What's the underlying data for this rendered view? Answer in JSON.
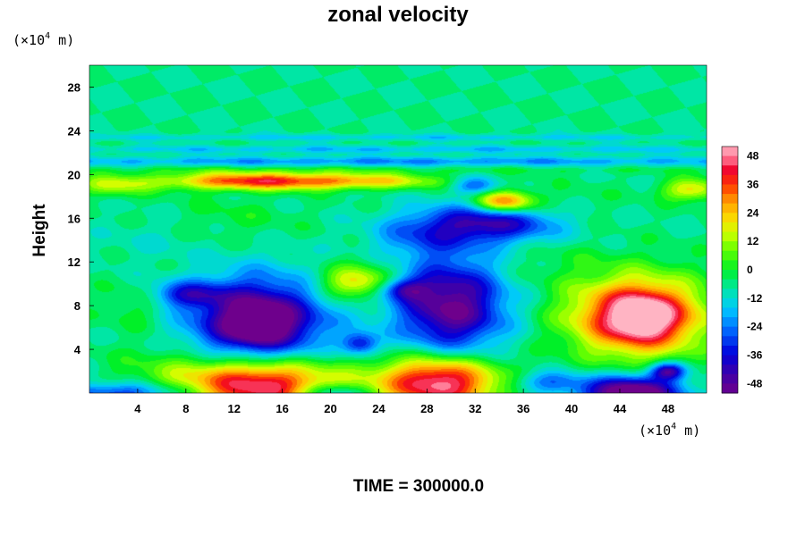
{
  "chart_data": {
    "type": "heatmap",
    "title": "zonal velocity",
    "ylabel": "Height",
    "xlabel": "",
    "y_unit_base": "(×10",
    "y_unit_exp": "4",
    "y_unit_tail": " m)",
    "x_unit_base": "(×10",
    "x_unit_exp": "4",
    "x_unit_tail": " m)",
    "footer": "TIME = 300000.0",
    "xlim": [
      0,
      51.2
    ],
    "ylim": [
      0,
      30
    ],
    "x_ticks": [
      4,
      8,
      12,
      16,
      20,
      24,
      28,
      32,
      36,
      40,
      44,
      48
    ],
    "y_ticks": [
      4,
      8,
      12,
      16,
      20,
      24,
      28
    ],
    "colorbar": {
      "range": [
        -52,
        52
      ],
      "ticks": [
        48,
        36,
        24,
        12,
        0,
        -12,
        -24,
        -36,
        -48
      ]
    },
    "background_value": -6,
    "features": [
      {
        "x": 6,
        "y": 2,
        "rx": 5,
        "ry": 3,
        "v": 6
      },
      {
        "x": 24,
        "y": 11,
        "rx": 4,
        "ry": 2,
        "v": 6
      },
      {
        "x": 38,
        "y": 12,
        "rx": 6,
        "ry": 2.5,
        "v": 4
      },
      {
        "x": 12,
        "y": 16,
        "rx": 5,
        "ry": 2,
        "v": 5
      },
      {
        "x": 40,
        "y": 17,
        "rx": 4,
        "ry": 2,
        "v": 4
      },
      {
        "x": 27,
        "y": 14,
        "rx": 4,
        "ry": 2,
        "v": -12
      },
      {
        "x": 5,
        "y": 14,
        "rx": 4,
        "ry": 2,
        "v": -4
      },
      {
        "x": 14,
        "y": 19.4,
        "rx": 8,
        "ry": 0.8,
        "v": 44
      },
      {
        "x": 24,
        "y": 19.4,
        "rx": 6,
        "ry": 0.7,
        "v": 20
      },
      {
        "x": 2,
        "y": 19,
        "rx": 3,
        "ry": 1,
        "v": 18
      },
      {
        "x": 50,
        "y": 18.6,
        "rx": 2.5,
        "ry": 1,
        "v": 26
      },
      {
        "x": 26,
        "y": 21.2,
        "rx": 40,
        "ry": 0.45,
        "v": -16
      },
      {
        "x": 26,
        "y": 22.3,
        "rx": 40,
        "ry": 0.35,
        "v": -11
      },
      {
        "x": 26,
        "y": 23.4,
        "rx": 40,
        "ry": 0.3,
        "v": -9
      },
      {
        "x": 26,
        "y": 20.4,
        "rx": 40,
        "ry": 0.35,
        "v": 4
      },
      {
        "x": 14,
        "y": 6.5,
        "rx": 5.5,
        "ry": 4,
        "v": -52
      },
      {
        "x": 14,
        "y": 6.5,
        "rx": 2.2,
        "ry": 1.5,
        "v": -25
      },
      {
        "x": 30,
        "y": 8,
        "rx": 4.5,
        "ry": 4.5,
        "v": -46
      },
      {
        "x": 33,
        "y": 15.5,
        "rx": 6,
        "ry": 1.8,
        "v": -36
      },
      {
        "x": 34.5,
        "y": 17.5,
        "rx": 2.5,
        "ry": 1,
        "v": 42
      },
      {
        "x": 32,
        "y": 19,
        "rx": 2,
        "ry": 0.8,
        "v": -20
      },
      {
        "x": 22,
        "y": 10,
        "rx": 3,
        "ry": 1.5,
        "v": 26
      },
      {
        "x": 22.5,
        "y": 4.5,
        "rx": 1.5,
        "ry": 1,
        "v": -28
      },
      {
        "x": 14,
        "y": 0.8,
        "rx": 6.5,
        "ry": 2.6,
        "v": 58
      },
      {
        "x": 29,
        "y": 1,
        "rx": 5,
        "ry": 2.4,
        "v": 58
      },
      {
        "x": 45.5,
        "y": 7,
        "rx": 5.5,
        "ry": 3.5,
        "v": 58
      },
      {
        "x": 46,
        "y": 7,
        "rx": 2.5,
        "ry": 2,
        "v": 20
      },
      {
        "x": 45,
        "y": 0,
        "rx": 4,
        "ry": 1.5,
        "v": -58
      },
      {
        "x": 48,
        "y": 2,
        "rx": 1.5,
        "ry": 0.8,
        "v": -40
      },
      {
        "x": 3,
        "y": 0,
        "rx": 6,
        "ry": 1,
        "v": -28
      },
      {
        "x": 20,
        "y": 0,
        "rx": 3,
        "ry": 0.8,
        "v": -24
      },
      {
        "x": 38,
        "y": 1,
        "rx": 3,
        "ry": 1,
        "v": -20
      },
      {
        "x": 8,
        "y": 9,
        "rx": 3,
        "ry": 1.2,
        "v": -24
      },
      {
        "x": 26,
        "y": 9.5,
        "rx": 2,
        "ry": 1,
        "v": -26
      },
      {
        "x": 4,
        "y": 8,
        "rx": 3,
        "ry": 2,
        "v": 8
      }
    ]
  }
}
